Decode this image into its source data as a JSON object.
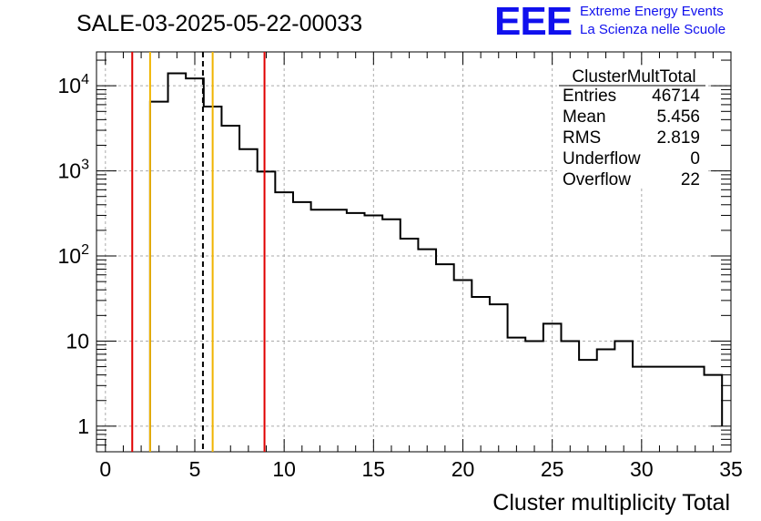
{
  "chart_data": {
    "type": "histogram",
    "title": "SALE-03-2025-05-22-00033",
    "xlabel": "Cluster multiplicity Total",
    "ylabel": "",
    "xlim": [
      -0.5,
      35
    ],
    "ylim": [
      0.5,
      25000
    ],
    "yscale": "log",
    "grid": true,
    "bin_width": 1,
    "bin_centers": [
      3,
      4,
      5,
      6,
      7,
      8,
      9,
      10,
      11,
      12,
      13,
      14,
      15,
      16,
      17,
      18,
      19,
      20,
      21,
      22,
      23,
      24,
      25,
      26,
      27,
      28,
      29,
      30,
      31,
      32,
      33,
      34
    ],
    "values": [
      6500,
      14000,
      12200,
      5700,
      3400,
      1800,
      980,
      560,
      430,
      350,
      350,
      320,
      300,
      270,
      160,
      120,
      80,
      52,
      33,
      27,
      11,
      10,
      16,
      10,
      6,
      8,
      10,
      5,
      5,
      5,
      5,
      4
    ],
    "x_ticks": [
      0,
      5,
      10,
      15,
      20,
      25,
      30,
      35
    ],
    "x_tick_labels": [
      "0",
      "5",
      "10",
      "15",
      "20",
      "25",
      "30",
      "35"
    ],
    "y_ticks": [
      1,
      10,
      100,
      1000,
      10000
    ],
    "y_tick_labels": [
      "1",
      "10",
      "10^2",
      "10^3",
      "10^4"
    ],
    "vertical_lines": [
      {
        "x": 1.5,
        "color": "#e00000",
        "style": "solid"
      },
      {
        "x": 2.5,
        "color": "#f0b400",
        "style": "solid"
      },
      {
        "x": 5.456,
        "color": "#000000",
        "style": "dashed"
      },
      {
        "x": 6.0,
        "color": "#f0b400",
        "style": "solid"
      },
      {
        "x": 8.9,
        "color": "#e00000",
        "style": "solid"
      }
    ],
    "stats_box": {
      "name": "ClusterMultTotal",
      "rows": [
        {
          "label": "Entries",
          "value": "46714"
        },
        {
          "label": "Mean",
          "value": "5.456"
        },
        {
          "label": "RMS",
          "value": "2.819"
        },
        {
          "label": "Underflow",
          "value": "0"
        },
        {
          "label": "Overflow",
          "value": "22"
        }
      ],
      "placement": "top-right"
    }
  },
  "logo": {
    "mark": "EEE",
    "line1": "Extreme Energy Events",
    "line2": "La Scienza nelle Scuole",
    "color": "#1010ee"
  }
}
